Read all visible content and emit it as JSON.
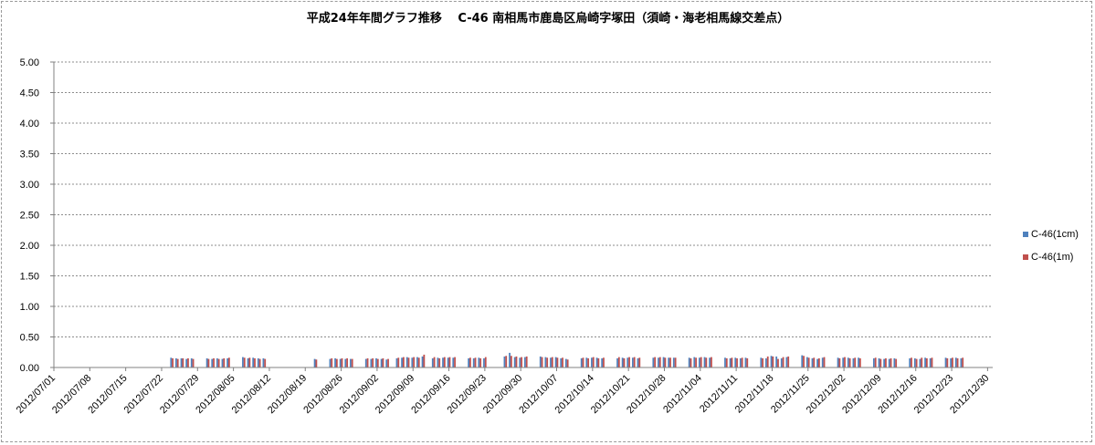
{
  "chart_data": {
    "type": "bar",
    "title": "平成24年年間グラフ推移　 C-46 南相馬市鹿島区烏崎字塚田（須崎・海老相馬線交差点）",
    "xlabel": "",
    "ylabel": "",
    "ylim": [
      0,
      5
    ],
    "y_ticks": [
      "5.00",
      "4.50",
      "4.00",
      "3.50",
      "3.00",
      "2.50",
      "2.00",
      "1.50",
      "1.00",
      "0.50",
      "0.00"
    ],
    "x_range": [
      "2012/07/01",
      "2012/12/31"
    ],
    "x_ticks": [
      "2012/07/01",
      "2012/07/08",
      "2012/07/15",
      "2012/07/22",
      "2012/07/29",
      "2012/08/05",
      "2012/08/12",
      "2012/08/19",
      "2012/08/26",
      "2012/09/02",
      "2012/09/09",
      "2012/09/16",
      "2012/09/23",
      "2012/09/30",
      "2012/10/07",
      "2012/10/14",
      "2012/10/21",
      "2012/10/28",
      "2012/11/04",
      "2012/11/11",
      "2012/11/18",
      "2012/11/25",
      "2012/12/02",
      "2012/12/09",
      "2012/12/16",
      "2012/12/23",
      "2012/12/30"
    ],
    "grid": true,
    "legend_position": "right",
    "series": [
      {
        "name": "C-46(1cm)",
        "color": "#4f81bd",
        "points": [
          [
            "2012/07/24",
            0.16
          ],
          [
            "2012/07/25",
            0.15
          ],
          [
            "2012/07/26",
            0.15
          ],
          [
            "2012/07/27",
            0.14
          ],
          [
            "2012/07/28",
            0.15
          ],
          [
            "2012/07/31",
            0.15
          ],
          [
            "2012/08/01",
            0.14
          ],
          [
            "2012/08/02",
            0.15
          ],
          [
            "2012/08/03",
            0.14
          ],
          [
            "2012/08/04",
            0.15
          ],
          [
            "2012/08/07",
            0.17
          ],
          [
            "2012/08/08",
            0.15
          ],
          [
            "2012/08/09",
            0.16
          ],
          [
            "2012/08/10",
            0.15
          ],
          [
            "2012/08/11",
            0.15
          ],
          [
            "2012/08/21",
            0.14
          ],
          [
            "2012/08/24",
            0.14
          ],
          [
            "2012/08/25",
            0.15
          ],
          [
            "2012/08/26",
            0.14
          ],
          [
            "2012/08/27",
            0.14
          ],
          [
            "2012/08/28",
            0.14
          ],
          [
            "2012/08/31",
            0.14
          ],
          [
            "2012/09/01",
            0.14
          ],
          [
            "2012/09/02",
            0.15
          ],
          [
            "2012/09/03",
            0.14
          ],
          [
            "2012/09/04",
            0.13
          ],
          [
            "2012/09/06",
            0.15
          ],
          [
            "2012/09/07",
            0.16
          ],
          [
            "2012/09/08",
            0.17
          ],
          [
            "2012/09/09",
            0.16
          ],
          [
            "2012/09/10",
            0.17
          ],
          [
            "2012/09/11",
            0.18
          ],
          [
            "2012/09/13",
            0.15
          ],
          [
            "2012/09/14",
            0.16
          ],
          [
            "2012/09/15",
            0.16
          ],
          [
            "2012/09/16",
            0.16
          ],
          [
            "2012/09/17",
            0.16
          ],
          [
            "2012/09/20",
            0.15
          ],
          [
            "2012/09/21",
            0.15
          ],
          [
            "2012/09/22",
            0.16
          ],
          [
            "2012/09/23",
            0.15
          ],
          [
            "2012/09/27",
            0.18
          ],
          [
            "2012/09/28",
            0.24
          ],
          [
            "2012/09/29",
            0.17
          ],
          [
            "2012/09/30",
            0.16
          ],
          [
            "2012/10/01",
            0.17
          ],
          [
            "2012/10/04",
            0.18
          ],
          [
            "2012/10/05",
            0.17
          ],
          [
            "2012/10/06",
            0.16
          ],
          [
            "2012/10/07",
            0.17
          ],
          [
            "2012/10/08",
            0.15
          ],
          [
            "2012/10/09",
            0.14
          ],
          [
            "2012/10/12",
            0.15
          ],
          [
            "2012/10/13",
            0.16
          ],
          [
            "2012/10/14",
            0.16
          ],
          [
            "2012/10/15",
            0.16
          ],
          [
            "2012/10/16",
            0.15
          ],
          [
            "2012/10/19",
            0.15
          ],
          [
            "2012/10/20",
            0.16
          ],
          [
            "2012/10/21",
            0.16
          ],
          [
            "2012/10/22",
            0.16
          ],
          [
            "2012/10/23",
            0.15
          ],
          [
            "2012/10/26",
            0.16
          ],
          [
            "2012/10/27",
            0.16
          ],
          [
            "2012/10/28",
            0.17
          ],
          [
            "2012/10/29",
            0.16
          ],
          [
            "2012/10/30",
            0.16
          ],
          [
            "2012/11/02",
            0.16
          ],
          [
            "2012/11/03",
            0.17
          ],
          [
            "2012/11/04",
            0.16
          ],
          [
            "2012/11/05",
            0.17
          ],
          [
            "2012/11/06",
            0.16
          ],
          [
            "2012/11/09",
            0.16
          ],
          [
            "2012/11/10",
            0.15
          ],
          [
            "2012/11/11",
            0.16
          ],
          [
            "2012/11/12",
            0.15
          ],
          [
            "2012/11/13",
            0.16
          ],
          [
            "2012/11/16",
            0.16
          ],
          [
            "2012/11/17",
            0.15
          ],
          [
            "2012/11/18",
            0.19
          ],
          [
            "2012/11/19",
            0.18
          ],
          [
            "2012/11/20",
            0.15
          ],
          [
            "2012/11/21",
            0.17
          ],
          [
            "2012/11/24",
            0.2
          ],
          [
            "2012/11/25",
            0.17
          ],
          [
            "2012/11/26",
            0.15
          ],
          [
            "2012/11/27",
            0.14
          ],
          [
            "2012/11/28",
            0.16
          ],
          [
            "2012/12/01",
            0.16
          ],
          [
            "2012/12/02",
            0.16
          ],
          [
            "2012/12/03",
            0.16
          ],
          [
            "2012/12/04",
            0.15
          ],
          [
            "2012/12/05",
            0.16
          ],
          [
            "2012/12/08",
            0.15
          ],
          [
            "2012/12/09",
            0.15
          ],
          [
            "2012/12/10",
            0.14
          ],
          [
            "2012/12/11",
            0.14
          ],
          [
            "2012/12/12",
            0.15
          ],
          [
            "2012/12/15",
            0.15
          ],
          [
            "2012/12/16",
            0.15
          ],
          [
            "2012/12/17",
            0.14
          ],
          [
            "2012/12/18",
            0.16
          ],
          [
            "2012/12/19",
            0.15
          ],
          [
            "2012/12/22",
            0.16
          ],
          [
            "2012/12/23",
            0.15
          ],
          [
            "2012/12/24",
            0.16
          ],
          [
            "2012/12/25",
            0.15
          ]
        ]
      },
      {
        "name": "C-46(1m)",
        "color": "#c0504d",
        "points": [
          [
            "2012/07/24",
            0.15
          ],
          [
            "2012/07/25",
            0.14
          ],
          [
            "2012/07/26",
            0.15
          ],
          [
            "2012/07/27",
            0.15
          ],
          [
            "2012/07/28",
            0.14
          ],
          [
            "2012/07/31",
            0.14
          ],
          [
            "2012/08/01",
            0.15
          ],
          [
            "2012/08/02",
            0.14
          ],
          [
            "2012/08/03",
            0.15
          ],
          [
            "2012/08/04",
            0.16
          ],
          [
            "2012/08/07",
            0.16
          ],
          [
            "2012/08/08",
            0.16
          ],
          [
            "2012/08/09",
            0.15
          ],
          [
            "2012/08/10",
            0.14
          ],
          [
            "2012/08/11",
            0.14
          ],
          [
            "2012/08/21",
            0.13
          ],
          [
            "2012/08/24",
            0.15
          ],
          [
            "2012/08/25",
            0.14
          ],
          [
            "2012/08/26",
            0.15
          ],
          [
            "2012/08/27",
            0.15
          ],
          [
            "2012/08/28",
            0.14
          ],
          [
            "2012/08/31",
            0.15
          ],
          [
            "2012/09/01",
            0.15
          ],
          [
            "2012/09/02",
            0.14
          ],
          [
            "2012/09/03",
            0.15
          ],
          [
            "2012/09/04",
            0.14
          ],
          [
            "2012/09/06",
            0.16
          ],
          [
            "2012/09/07",
            0.17
          ],
          [
            "2012/09/08",
            0.16
          ],
          [
            "2012/09/09",
            0.17
          ],
          [
            "2012/09/10",
            0.16
          ],
          [
            "2012/09/11",
            0.21
          ],
          [
            "2012/09/13",
            0.17
          ],
          [
            "2012/09/14",
            0.15
          ],
          [
            "2012/09/15",
            0.17
          ],
          [
            "2012/09/16",
            0.17
          ],
          [
            "2012/09/17",
            0.17
          ],
          [
            "2012/09/20",
            0.16
          ],
          [
            "2012/09/21",
            0.16
          ],
          [
            "2012/09/22",
            0.15
          ],
          [
            "2012/09/23",
            0.17
          ],
          [
            "2012/09/27",
            0.19
          ],
          [
            "2012/09/28",
            0.19
          ],
          [
            "2012/09/29",
            0.18
          ],
          [
            "2012/09/30",
            0.17
          ],
          [
            "2012/10/01",
            0.18
          ],
          [
            "2012/10/04",
            0.17
          ],
          [
            "2012/10/05",
            0.16
          ],
          [
            "2012/10/06",
            0.17
          ],
          [
            "2012/10/07",
            0.16
          ],
          [
            "2012/10/08",
            0.16
          ],
          [
            "2012/10/09",
            0.13
          ],
          [
            "2012/10/12",
            0.16
          ],
          [
            "2012/10/13",
            0.15
          ],
          [
            "2012/10/14",
            0.17
          ],
          [
            "2012/10/15",
            0.15
          ],
          [
            "2012/10/16",
            0.16
          ],
          [
            "2012/10/19",
            0.17
          ],
          [
            "2012/10/20",
            0.15
          ],
          [
            "2012/10/21",
            0.17
          ],
          [
            "2012/10/22",
            0.17
          ],
          [
            "2012/10/23",
            0.16
          ],
          [
            "2012/10/26",
            0.17
          ],
          [
            "2012/10/27",
            0.17
          ],
          [
            "2012/10/28",
            0.16
          ],
          [
            "2012/10/29",
            0.16
          ],
          [
            "2012/10/30",
            0.16
          ],
          [
            "2012/11/02",
            0.15
          ],
          [
            "2012/11/03",
            0.16
          ],
          [
            "2012/11/04",
            0.17
          ],
          [
            "2012/11/05",
            0.16
          ],
          [
            "2012/11/06",
            0.17
          ],
          [
            "2012/11/09",
            0.15
          ],
          [
            "2012/11/10",
            0.16
          ],
          [
            "2012/11/11",
            0.15
          ],
          [
            "2012/11/12",
            0.16
          ],
          [
            "2012/11/13",
            0.15
          ],
          [
            "2012/11/16",
            0.15
          ],
          [
            "2012/11/17",
            0.18
          ],
          [
            "2012/11/18",
            0.18
          ],
          [
            "2012/11/19",
            0.14
          ],
          [
            "2012/11/20",
            0.17
          ],
          [
            "2012/11/21",
            0.18
          ],
          [
            "2012/11/24",
            0.19
          ],
          [
            "2012/11/25",
            0.16
          ],
          [
            "2012/11/26",
            0.16
          ],
          [
            "2012/11/27",
            0.15
          ],
          [
            "2012/11/28",
            0.17
          ],
          [
            "2012/12/01",
            0.15
          ],
          [
            "2012/12/02",
            0.17
          ],
          [
            "2012/12/03",
            0.15
          ],
          [
            "2012/12/04",
            0.16
          ],
          [
            "2012/12/05",
            0.15
          ],
          [
            "2012/12/08",
            0.16
          ],
          [
            "2012/12/09",
            0.14
          ],
          [
            "2012/12/10",
            0.15
          ],
          [
            "2012/12/11",
            0.15
          ],
          [
            "2012/12/12",
            0.14
          ],
          [
            "2012/12/15",
            0.16
          ],
          [
            "2012/12/16",
            0.14
          ],
          [
            "2012/12/17",
            0.16
          ],
          [
            "2012/12/18",
            0.15
          ],
          [
            "2012/12/19",
            0.16
          ],
          [
            "2012/12/22",
            0.15
          ],
          [
            "2012/12/23",
            0.16
          ],
          [
            "2012/12/24",
            0.15
          ],
          [
            "2012/12/25",
            0.16
          ]
        ]
      }
    ]
  }
}
